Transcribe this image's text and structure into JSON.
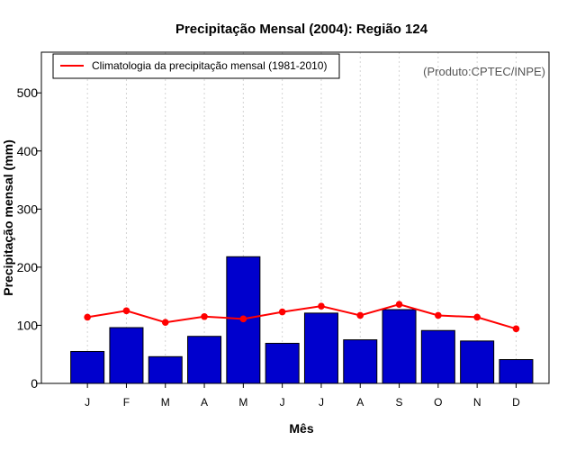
{
  "chart_data": {
    "type": "bar",
    "title": "Precipitação Mensal (2004): Região 124",
    "xlabel": "Mês",
    "ylabel": "Precipitação mensal (mm)",
    "ylim": [
      0,
      570
    ],
    "yticks": [
      0,
      100,
      200,
      300,
      400,
      500
    ],
    "categories": [
      "J",
      "F",
      "M",
      "A",
      "M",
      "J",
      "J",
      "A",
      "S",
      "O",
      "N",
      "D"
    ],
    "series": [
      {
        "name": "Precipitação mensal 2004",
        "type": "bar",
        "color": "#0000cd",
        "values": [
          55,
          96,
          46,
          81,
          218,
          69,
          121,
          75,
          127,
          91,
          73,
          41
        ]
      },
      {
        "name": "Climatologia da precipitação mensal (1981-2010)",
        "type": "line",
        "color": "#ff0000",
        "values": [
          114,
          125,
          105,
          115,
          111,
          123,
          133,
          117,
          136,
          117,
          114,
          94
        ]
      }
    ],
    "legend": {
      "entries": [
        "Climatologia da precipitação mensal (1981-2010)"
      ],
      "position": "top-left"
    },
    "grid": "vertical dotted",
    "annotation": "(Produto:CPTEC/INPE)"
  }
}
